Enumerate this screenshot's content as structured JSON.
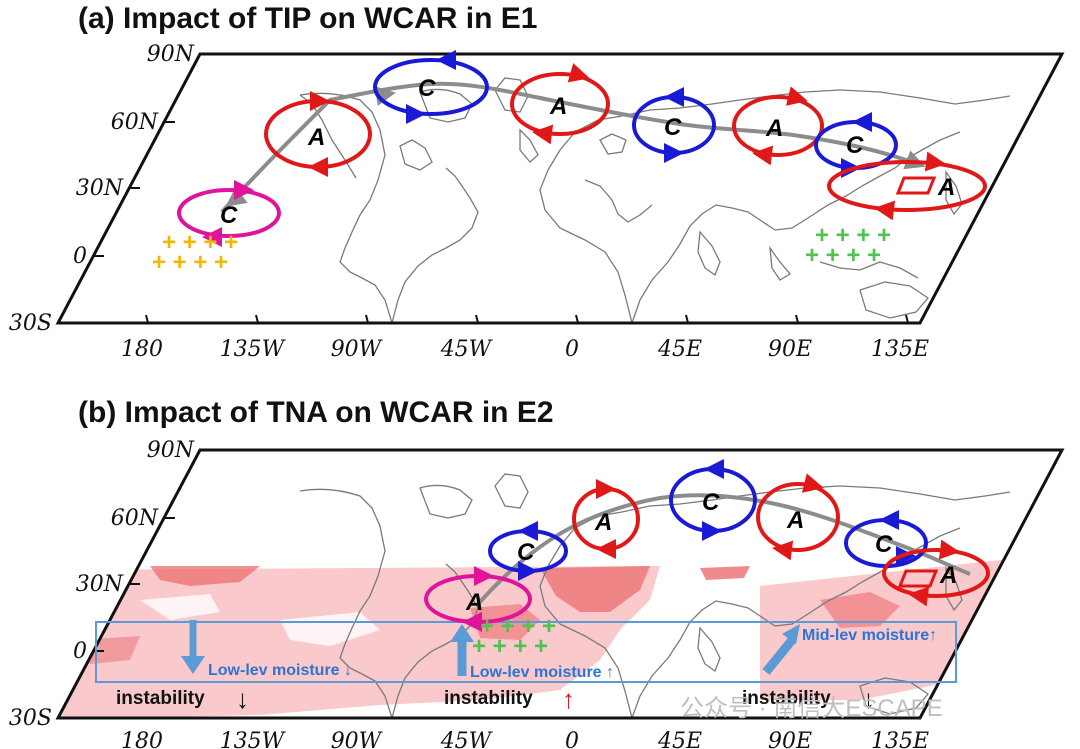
{
  "panels": [
    {
      "title": "(a) Impact of TIP on WCAR in E1",
      "lat_labels": [
        "90N",
        "60N",
        "30N",
        "0",
        "30S"
      ],
      "lon_labels": [
        "180",
        "135W",
        "90W",
        "45W",
        "0",
        "45E",
        "90E",
        "135E"
      ],
      "systems": [
        {
          "label": "C",
          "type": "cyclone",
          "color": "#e0149b"
        },
        {
          "label": "A",
          "type": "anticyclone",
          "color": "#e01818"
        },
        {
          "label": "C",
          "type": "cyclone",
          "color": "#1a1ad6"
        },
        {
          "label": "A",
          "type": "anticyclone",
          "color": "#e01818"
        },
        {
          "label": "C",
          "type": "cyclone",
          "color": "#1a1ad6"
        },
        {
          "label": "A",
          "type": "anticyclone",
          "color": "#e01818"
        },
        {
          "label": "C",
          "type": "cyclone",
          "color": "#1a1ad6"
        },
        {
          "label": "A",
          "type": "anticyclone",
          "color": "#e01818"
        }
      ],
      "plus_rows_orange": [
        "+ + + +",
        "+ + + +"
      ],
      "plus_rows_green": [
        "+ + + +",
        "+ + + +"
      ]
    },
    {
      "title": "(b) Impact of TNA on WCAR in E2",
      "lat_labels": [
        "90N",
        "60N",
        "30N",
        "0",
        "30S"
      ],
      "lon_labels": [
        "180",
        "135W",
        "90W",
        "45W",
        "0",
        "45E",
        "90E",
        "135E"
      ],
      "systems": [
        {
          "label": "A",
          "type": "anticyclone",
          "color": "#e0149b"
        },
        {
          "label": "C",
          "type": "cyclone",
          "color": "#1a1ad6"
        },
        {
          "label": "A",
          "type": "anticyclone",
          "color": "#e01818"
        },
        {
          "label": "C",
          "type": "cyclone",
          "color": "#1a1ad6"
        },
        {
          "label": "A",
          "type": "anticyclone",
          "color": "#e01818"
        },
        {
          "label": "C",
          "type": "cyclone",
          "color": "#1a1ad6"
        },
        {
          "label": "A",
          "type": "anticyclone",
          "color": "#e01818"
        }
      ],
      "plus_rows_green": [
        "+ + + +",
        "+ + + +"
      ],
      "notes": {
        "low_lev_1": "Low-lev moisture ↓",
        "low_lev_2": "Low-lev moisture ↑",
        "mid_lev": "Mid-lev moisture↑",
        "instability": "instability",
        "down_arrow": "↓",
        "up_arrow": "↑"
      }
    }
  ],
  "colors": {
    "track": "#8c8c8c",
    "shading_light": "#f9c9cb",
    "shading_dark": "#ec6e71",
    "moisture": "#5b9bd5"
  },
  "watermark": "公众号 · 南信大ESCAPE"
}
